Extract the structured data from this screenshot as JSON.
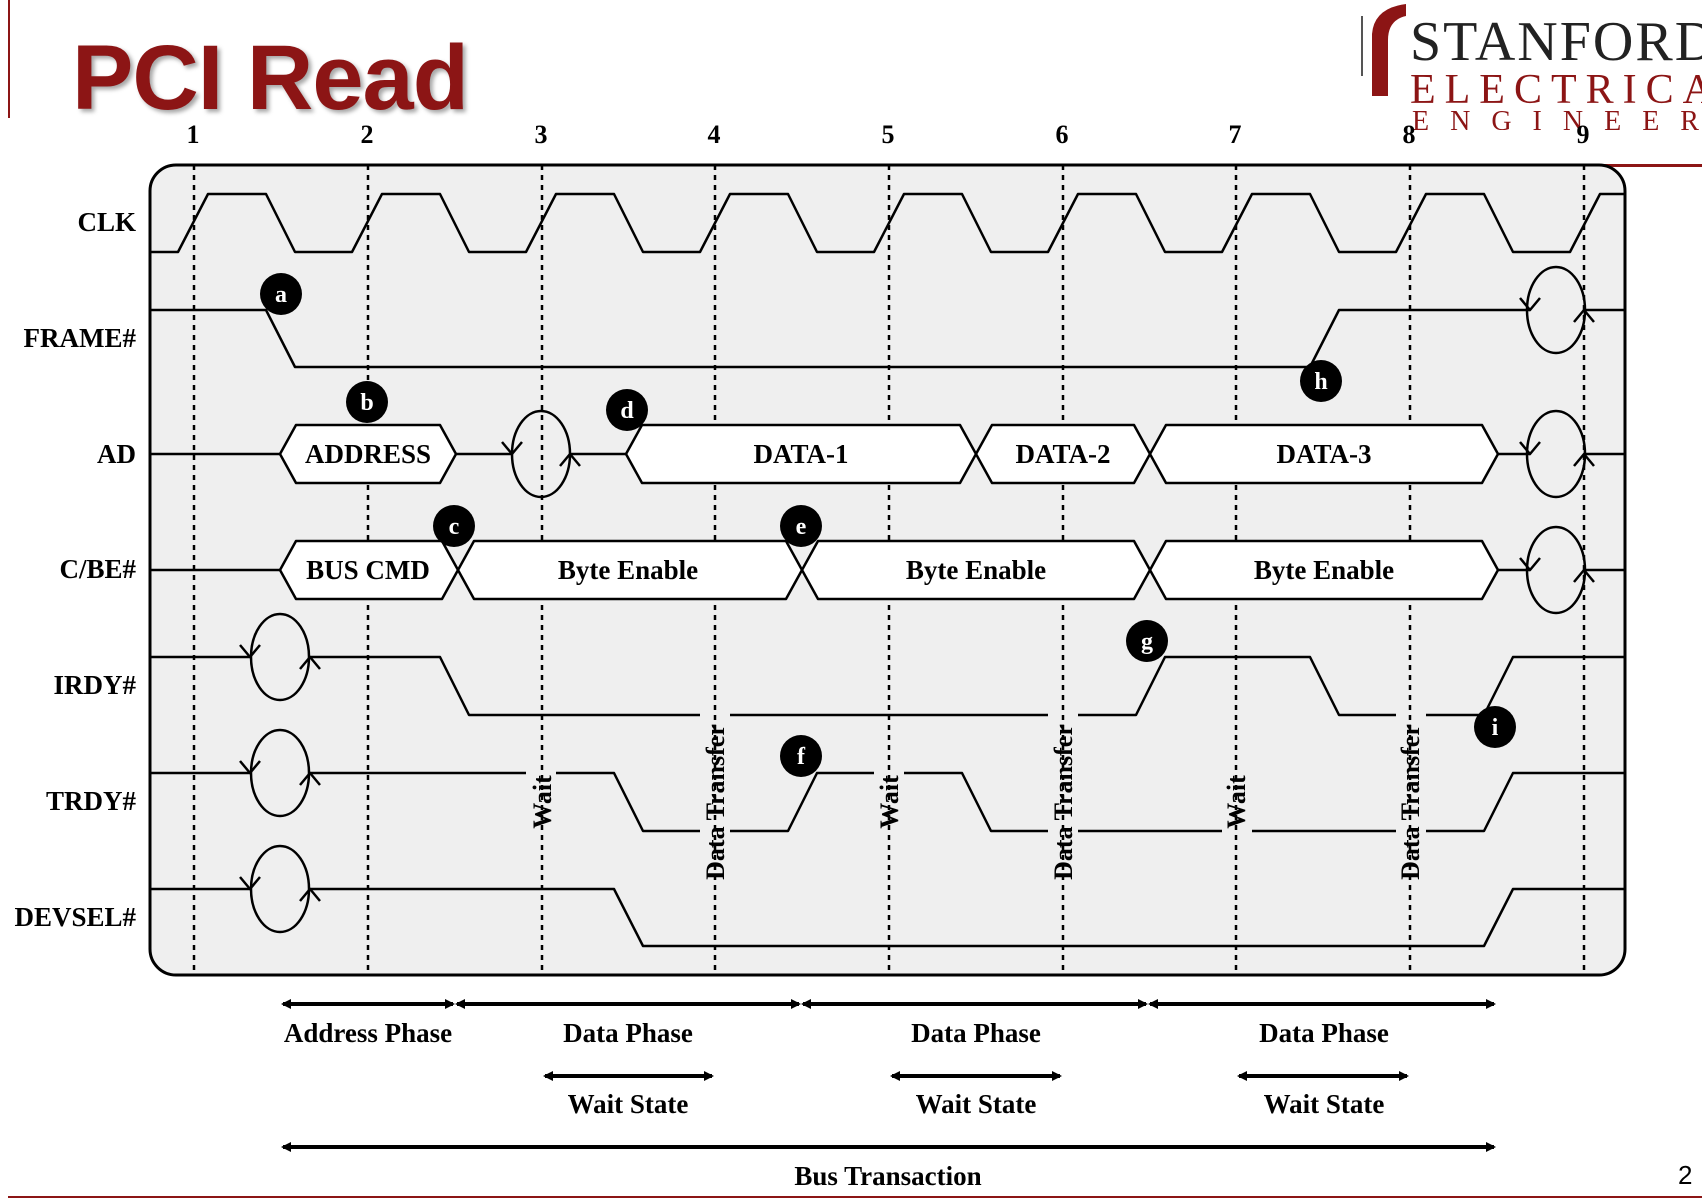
{
  "title": "PCI Read",
  "page_number": "2",
  "logo": {
    "line1": "STANFORD",
    "line2": "ELECTRICAL",
    "line3": "ENGINEERING"
  },
  "clock_numbers": [
    "1",
    "2",
    "3",
    "4",
    "5",
    "6",
    "7",
    "8",
    "9"
  ],
  "signals": [
    "CLK",
    "FRAME#",
    "AD",
    "C/BE#",
    "IRDY#",
    "TRDY#",
    "DEVSEL#"
  ],
  "ad_fields": {
    "address": "ADDRESS",
    "data1": "DATA-1",
    "data2": "DATA-2",
    "data3": "DATA-3"
  },
  "cbe_fields": {
    "bus_cmd": "BUS CMD",
    "byte_enable": "Byte Enable"
  },
  "markers": [
    "a",
    "b",
    "c",
    "d",
    "e",
    "f",
    "g",
    "h",
    "i"
  ],
  "vertical_labels": {
    "wait": "Wait",
    "data_transfer": "Data Transfer"
  },
  "phases": {
    "address_phase": "Address Phase",
    "data_phase": "Data Phase",
    "wait_state": "Wait State",
    "bus_transaction": "Bus Transaction"
  },
  "colors": {
    "title": "#8c1515",
    "panel": "#efefef",
    "marker": "#000000"
  }
}
